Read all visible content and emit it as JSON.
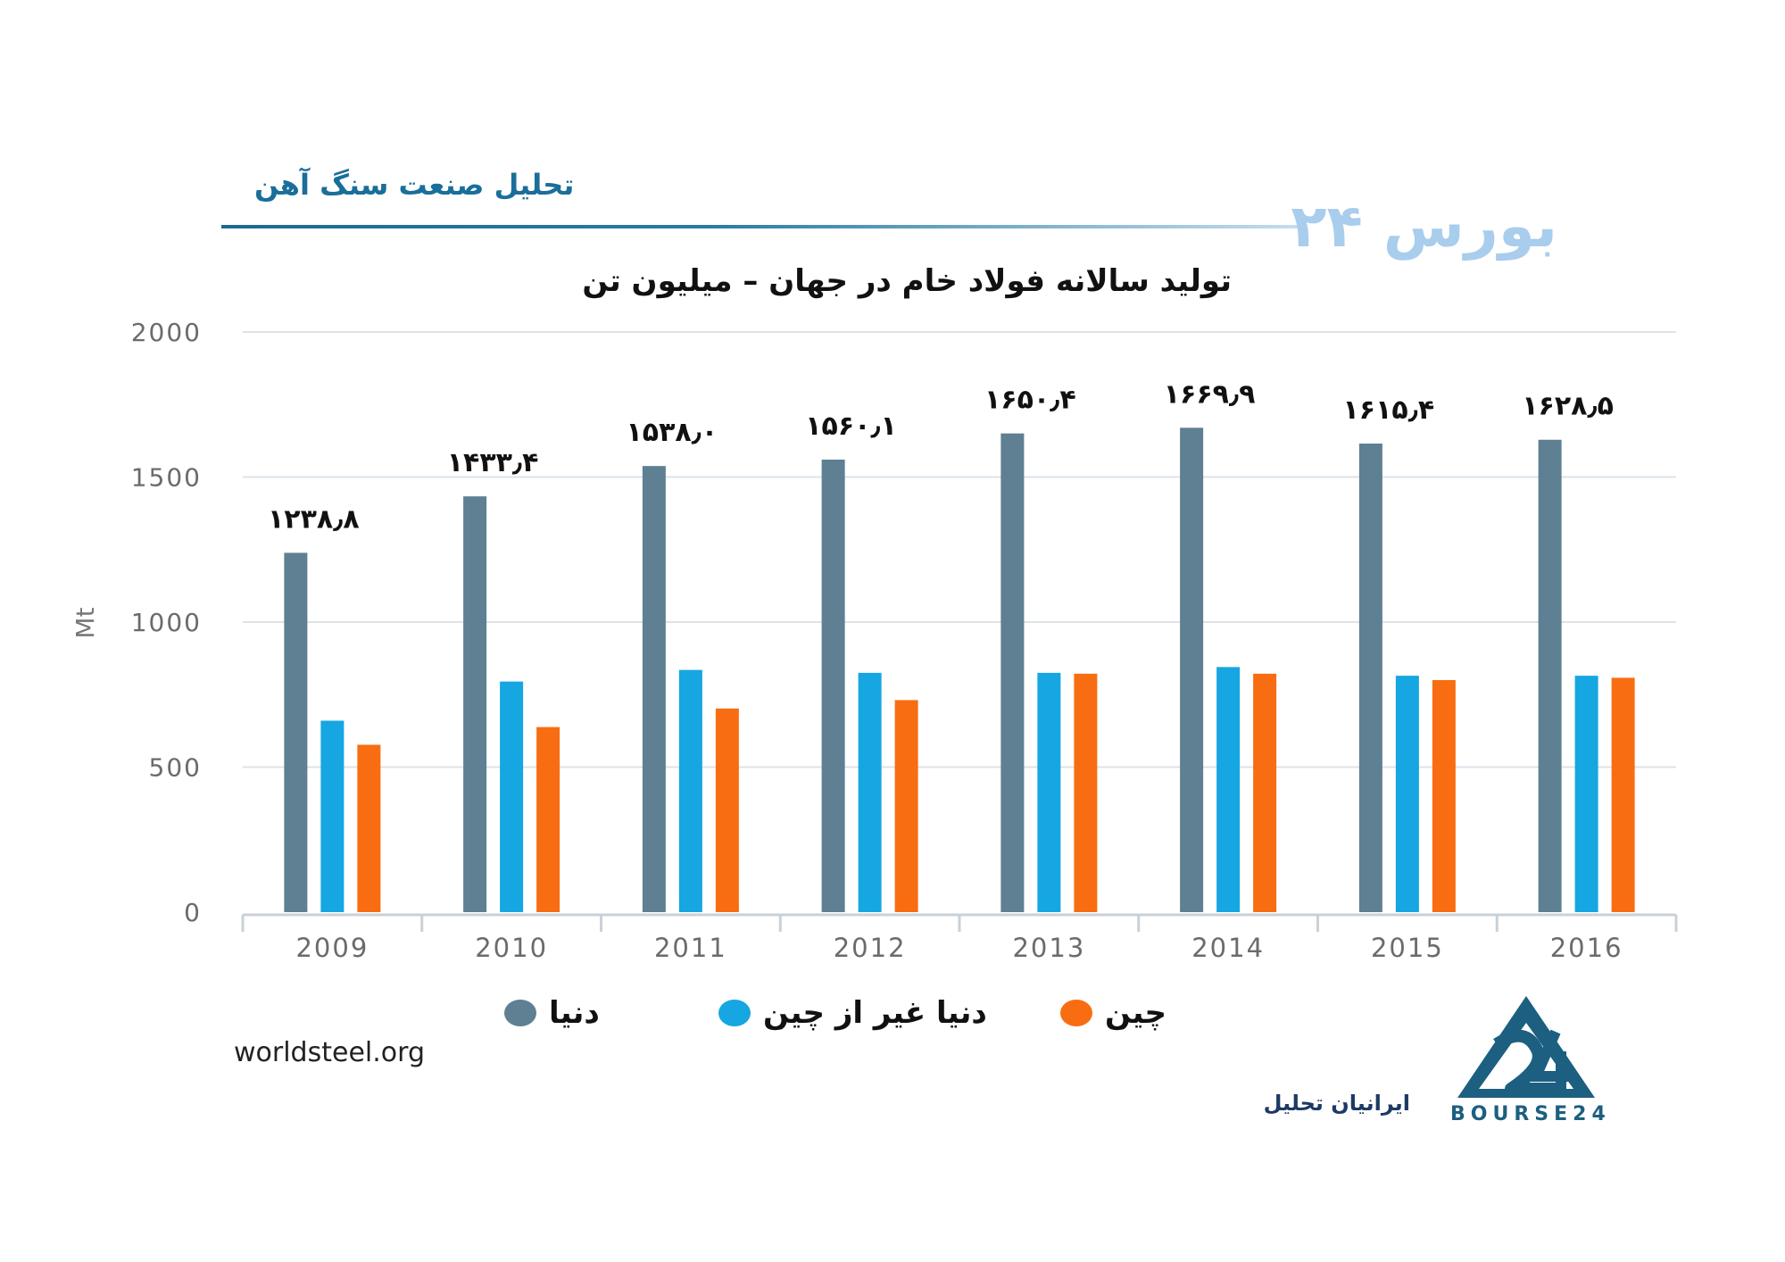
{
  "header": {
    "title": "تحلیل صنعت سنگ آهن",
    "brand": "بورس ۲۴"
  },
  "chart_data": {
    "type": "bar",
    "title": "تولید سالانه فولاد خام در جهان – میلیون تن",
    "xlabel": "",
    "ylabel": "Mt",
    "ylim": [
      0,
      2000
    ],
    "yticks": [
      "0",
      "500",
      "1000",
      "1500",
      "2000"
    ],
    "categories": [
      "2009",
      "2010",
      "2011",
      "2012",
      "2013",
      "2014",
      "2015",
      "2016"
    ],
    "series": [
      {
        "name": "دنیا",
        "color": "#5f7f92",
        "values": [
          1238.8,
          1433.4,
          1538.0,
          1560.1,
          1650.4,
          1669.9,
          1615.4,
          1628.5
        ]
      },
      {
        "name": "دنیا غیر از چین",
        "color": "#16a6e2",
        "values": [
          660,
          795,
          835,
          825,
          825,
          845,
          815,
          815
        ]
      },
      {
        "name": "چین",
        "color": "#f86d12",
        "values": [
          577,
          638,
          702,
          731,
          822,
          822,
          800,
          808
        ]
      }
    ],
    "data_labels": [
      "۱۲۳۸٫۸",
      "۱۴۳۳٫۴",
      "۱۵۳۸٫۰",
      "۱۵۶۰٫۱",
      "۱۶۵۰٫۴",
      "۱۶۶۹٫۹",
      "۱۶۱۵٫۴",
      "۱۶۲۸٫۵"
    ],
    "grid": true,
    "legend_position": "bottom"
  },
  "source": "worldsteel.org",
  "logo": {
    "text": "BOURSE24",
    "subtitle": "ایرانیان تحلیل",
    "color": "#1c5f80"
  }
}
